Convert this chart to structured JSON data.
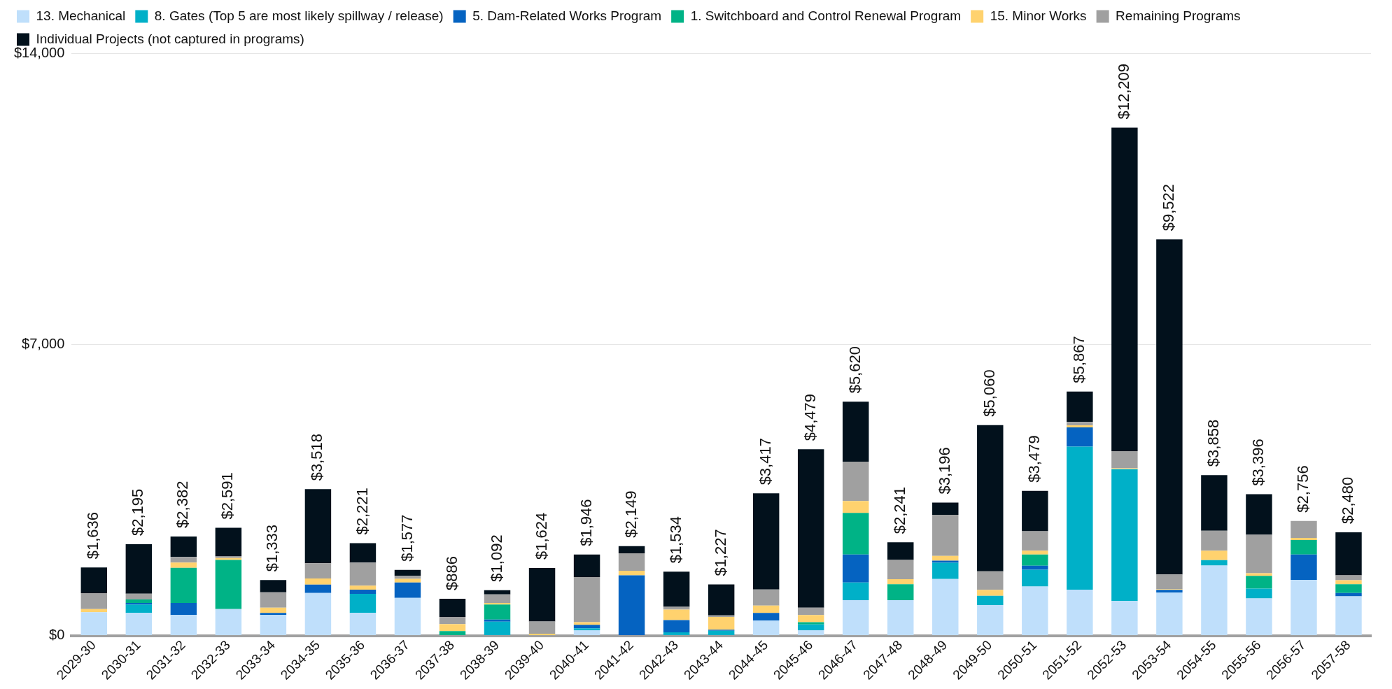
{
  "chart_data": {
    "type": "bar",
    "stacked": true,
    "categories": [
      "2029-30",
      "2030-31",
      "2031-32",
      "2032-33",
      "2033-34",
      "2034-35",
      "2035-36",
      "2036-37",
      "2037-38",
      "2038-39",
      "2039-40",
      "2040-41",
      "2041-42",
      "2042-43",
      "2043-44",
      "2044-45",
      "2045-46",
      "2046-47",
      "2047-48",
      "2048-49",
      "2049-50",
      "2050-51",
      "2051-52",
      "2052-53",
      "2053-54",
      "2054-55",
      "2055-56",
      "2056-57",
      "2057-58"
    ],
    "series": [
      {
        "name": "13. Mechanical",
        "color": "#bfdffb",
        "values": [
          560,
          542,
          491,
          638,
          491,
          1021,
          542,
          906,
          null,
          null,
          null,
          128,
          null,
          null,
          null,
          364,
          128,
          849,
          849,
          1359,
          734,
          1180,
          1104,
          829,
          1034,
          1684,
          893,
          1340,
          944
        ]
      },
      {
        "name": "8. Gates (Top 5 are most likely spillway / release)",
        "color": "#00b0c8",
        "values": [
          null,
          204,
          null,
          null,
          null,
          null,
          459,
          null,
          null,
          332,
          null,
          45,
          null,
          77,
          115,
          null,
          140,
          427,
          null,
          389,
          223,
          402,
          3439,
          3171,
          null,
          128,
          236,
          null,
          null
        ]
      },
      {
        "name": "5. Dam-Related Works Program",
        "color": "#0563c1",
        "values": [
          null,
          38,
          294,
          null,
          51,
          204,
          102,
          370,
          null,
          51,
          null,
          83,
          1448,
          293,
          26,
          179,
          null,
          670,
          null,
          51,
          null,
          96,
          459,
          null,
          64,
          null,
          null,
          606,
          77
        ]
      },
      {
        "name": "1. Switchboard and Control Renewal Program",
        "color": "#00b386",
        "values": [
          null,
          83,
          842,
          1180,
          null,
          null,
          null,
          null,
          108,
          364,
          null,
          null,
          null,
          null,
          null,
          null,
          51,
          1002,
          383,
          null,
          null,
          268,
          null,
          null,
          null,
          null,
          306,
          351,
          211
        ]
      },
      {
        "name": "15. Minor Works",
        "color": "#ffd26e",
        "values": [
          77,
          null,
          128,
          45,
          128,
          147,
          96,
          89,
          166,
          38,
          45,
          64,
          108,
          255,
          306,
          179,
          172,
          287,
          121,
          115,
          140,
          96,
          51,
          19,
          19,
          230,
          64,
          51,
          96
        ]
      },
      {
        "name": "Remaining Programs",
        "color": "#a0a0a0",
        "values": [
          383,
          140,
          134,
          38,
          370,
          364,
          555,
          70,
          172,
          204,
          293,
          1085,
          421,
          64,
          38,
          383,
          179,
          944,
          466,
          989,
          447,
          466,
          83,
          415,
          351,
          479,
          925,
          408,
          121
        ]
      },
      {
        "name": "Individual Projects (not captured in programs)",
        "color": "#02111c",
        "values": [
          616,
          1188,
          493,
          690,
          293,
          1782,
          467,
          142,
          440,
          103,
          1286,
          541,
          172,
          845,
          742,
          2312,
          3809,
          1441,
          422,
          293,
          3516,
          971,
          731,
          7775,
          8054,
          1337,
          972,
          null,
          1031
        ]
      }
    ],
    "totals": [
      "$1,636",
      "$2,195",
      "$2,382",
      "$2,591",
      "$1,333",
      "$3,518",
      "$2,221",
      "$1,577",
      "$886",
      "$1,092",
      "$1,624",
      "$1,946",
      "$2,149",
      "$1,534",
      "$1,227",
      "$3,417",
      "$4,479",
      "$5,620",
      "$2,241",
      "$3,196",
      "$5,060",
      "$3,479",
      "$5,867",
      "$12,209",
      "$9,522",
      "$3,858",
      "$3,396",
      "$2,756",
      "$2,480"
    ],
    "ylim": [
      0,
      14000
    ],
    "yticks": [
      {
        "value": 0,
        "label": "$0"
      },
      {
        "value": 7000,
        "label": "$7,000"
      },
      {
        "value": 14000,
        "label": "$14,000"
      }
    ],
    "grid": "y",
    "legend": "top left"
  }
}
